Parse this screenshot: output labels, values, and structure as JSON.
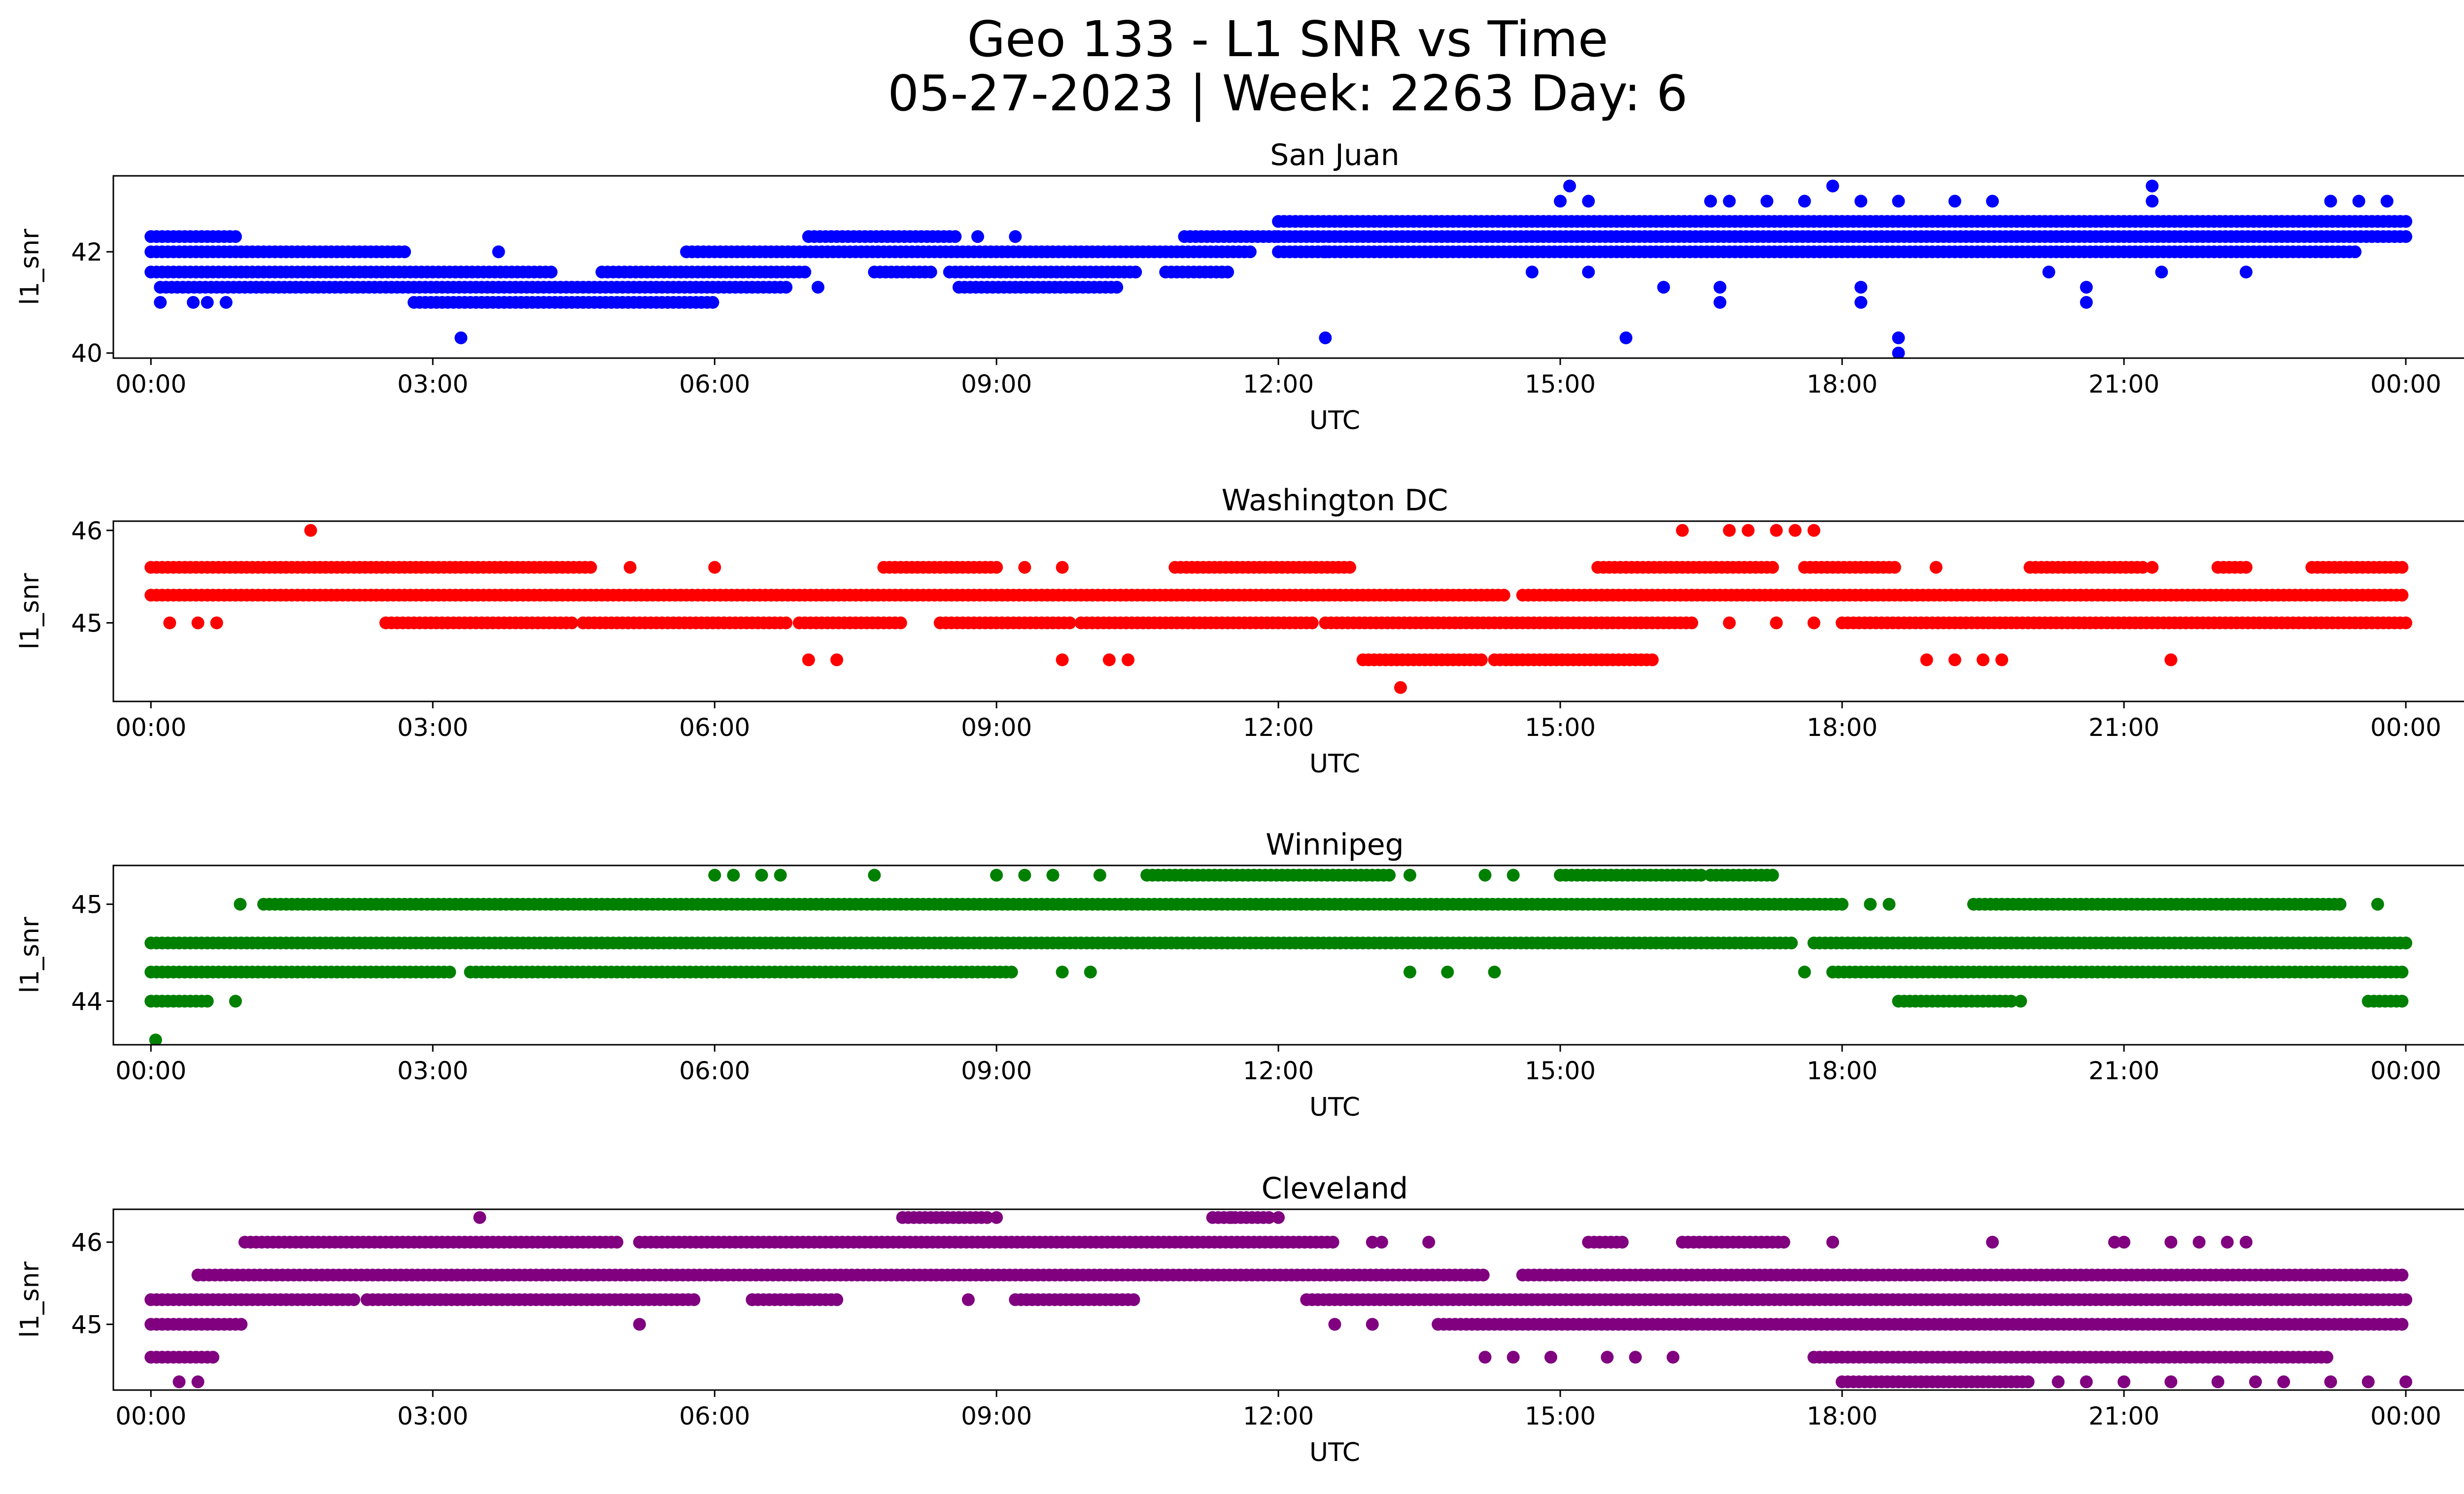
{
  "figure": {
    "title_line1": "Geo 133 - L1 SNR vs Time",
    "title_line2": "05-27-2023 | Week: 2263 Day: 6"
  },
  "chart_data": [
    {
      "type": "scatter",
      "title": "San Juan",
      "xlabel": "UTC",
      "ylabel": "l1_snr",
      "color": "#0000ff",
      "xticks": [
        "00:00",
        "03:00",
        "06:00",
        "09:00",
        "12:00",
        "15:00",
        "18:00",
        "21:00",
        "00:00"
      ],
      "xlim_hours": [
        -0.4,
        25.6
      ],
      "ylim": [
        39.9,
        43.5
      ],
      "yticks": [
        40,
        42
      ],
      "levels": [
        40.0,
        40.3,
        41.0,
        41.3,
        41.6,
        42.0,
        42.3,
        42.6,
        43.0,
        43.3
      ],
      "segments": [
        {
          "y": 42.3,
          "x": [
            [
              0.0,
              0.9
            ],
            [
              7.0,
              8.6
            ],
            [
              11.0,
              12.0
            ],
            [
              12.0,
              24.0
            ]
          ]
        },
        {
          "y": 42.0,
          "x": [
            [
              0.0,
              2.7
            ],
            [
              5.7,
              11.7
            ],
            [
              12.0,
              23.5
            ]
          ]
        },
        {
          "y": 41.6,
          "x": [
            [
              0.0,
              4.3
            ],
            [
              4.8,
              7.0
            ],
            [
              7.7,
              8.3
            ],
            [
              8.5,
              10.5
            ],
            [
              10.8,
              11.5
            ]
          ]
        },
        {
          "y": 41.3,
          "x": [
            [
              0.1,
              6.8
            ],
            [
              8.6,
              10.3
            ]
          ]
        },
        {
          "y": 41.0,
          "x": [
            [
              2.8,
              6.0
            ]
          ]
        },
        {
          "y": 42.6,
          "x": [
            [
              12.0,
              24.0
            ]
          ]
        }
      ],
      "points": [
        [
          0.1,
          41.0
        ],
        [
          0.45,
          41.0
        ],
        [
          0.8,
          41.0
        ],
        [
          0.6,
          41.0
        ],
        [
          3.3,
          40.3
        ],
        [
          3.7,
          42.0
        ],
        [
          8.8,
          42.3
        ],
        [
          9.2,
          42.3
        ],
        [
          7.1,
          41.3
        ],
        [
          11.4,
          41.6
        ],
        [
          12.5,
          40.3
        ],
        [
          15.1,
          43.3
        ],
        [
          15.0,
          43.0
        ],
        [
          15.3,
          43.0
        ],
        [
          15.7,
          40.3
        ],
        [
          16.6,
          43.0
        ],
        [
          16.8,
          43.0
        ],
        [
          17.2,
          43.0
        ],
        [
          17.6,
          43.0
        ],
        [
          17.9,
          43.3
        ],
        [
          18.2,
          43.0
        ],
        [
          18.6,
          43.0
        ],
        [
          19.2,
          43.0
        ],
        [
          19.6,
          43.0
        ],
        [
          16.7,
          41.0
        ],
        [
          16.7,
          41.3
        ],
        [
          18.2,
          41.0
        ],
        [
          18.2,
          41.3
        ],
        [
          18.6,
          40.3
        ],
        [
          18.6,
          40.0
        ],
        [
          20.6,
          41.0
        ],
        [
          20.6,
          41.3
        ],
        [
          21.3,
          43.3
        ],
        [
          21.3,
          43.0
        ],
        [
          23.2,
          43.0
        ],
        [
          23.5,
          43.0
        ],
        [
          23.8,
          43.0
        ],
        [
          14.7,
          41.6
        ],
        [
          15.3,
          41.6
        ],
        [
          16.1,
          41.3
        ],
        [
          20.2,
          41.6
        ],
        [
          21.4,
          41.6
        ],
        [
          22.3,
          41.6
        ],
        [
          12.5,
          42.0
        ]
      ]
    },
    {
      "type": "scatter",
      "title": "Washington DC",
      "xlabel": "UTC",
      "ylabel": "l1_snr",
      "color": "#ff0000",
      "xticks": [
        "00:00",
        "03:00",
        "06:00",
        "09:00",
        "12:00",
        "15:00",
        "18:00",
        "21:00",
        "00:00"
      ],
      "xlim_hours": [
        -0.4,
        25.6
      ],
      "ylim": [
        44.15,
        46.1
      ],
      "yticks": [
        45,
        46
      ],
      "levels": [
        44.3,
        44.6,
        45.0,
        45.3,
        45.6,
        46.0
      ],
      "segments": [
        {
          "y": 45.3,
          "x": [
            [
              0.0,
              14.4
            ],
            [
              14.6,
              24.0
            ]
          ]
        },
        {
          "y": 45.6,
          "x": [
            [
              0.0,
              4.7
            ],
            [
              7.8,
              9.0
            ],
            [
              10.9,
              12.8
            ],
            [
              15.4,
              17.3
            ],
            [
              17.6,
              18.6
            ],
            [
              20.0,
              21.2
            ],
            [
              22.0,
              22.3
            ],
            [
              23.0,
              24.0
            ]
          ]
        },
        {
          "y": 45.0,
          "x": [
            [
              2.5,
              4.5
            ],
            [
              4.6,
              6.8
            ],
            [
              6.9,
              8.0
            ],
            [
              8.4,
              9.8
            ],
            [
              9.9,
              12.4
            ],
            [
              12.5,
              16.4
            ],
            [
              18.0,
              24.0
            ]
          ]
        },
        {
          "y": 44.6,
          "x": [
            [
              12.9,
              14.2
            ],
            [
              14.3,
              16.0
            ]
          ]
        }
      ],
      "points": [
        [
          1.7,
          46.0
        ],
        [
          16.3,
          46.0
        ],
        [
          16.8,
          46.0
        ],
        [
          17.0,
          46.0
        ],
        [
          17.3,
          46.0
        ],
        [
          17.5,
          46.0
        ],
        [
          17.7,
          46.0
        ],
        [
          13.3,
          44.3
        ],
        [
          0.2,
          45.0
        ],
        [
          0.5,
          45.0
        ],
        [
          0.7,
          45.0
        ],
        [
          16.8,
          45.0
        ],
        [
          17.3,
          45.0
        ],
        [
          17.7,
          45.0
        ],
        [
          7.0,
          44.6
        ],
        [
          7.3,
          44.6
        ],
        [
          9.7,
          44.6
        ],
        [
          10.2,
          44.6
        ],
        [
          10.4,
          44.6
        ],
        [
          18.9,
          44.6
        ],
        [
          19.2,
          44.6
        ],
        [
          19.5,
          44.6
        ],
        [
          19.7,
          44.6
        ],
        [
          21.5,
          44.6
        ],
        [
          5.1,
          45.6
        ],
        [
          6.0,
          45.6
        ],
        [
          9.3,
          45.6
        ],
        [
          9.7,
          45.6
        ],
        [
          19.0,
          45.6
        ],
        [
          21.3,
          45.6
        ]
      ]
    },
    {
      "type": "scatter",
      "title": "Winnipeg",
      "xlabel": "UTC",
      "ylabel": "l1_snr",
      "color": "#008000",
      "xticks": [
        "00:00",
        "03:00",
        "06:00",
        "09:00",
        "12:00",
        "15:00",
        "18:00",
        "21:00",
        "00:00"
      ],
      "xlim_hours": [
        -0.4,
        25.6
      ],
      "ylim": [
        43.55,
        45.4
      ],
      "yticks": [
        44,
        45
      ],
      "levels": [
        43.6,
        44.0,
        44.3,
        44.6,
        45.0,
        45.3
      ],
      "segments": [
        {
          "y": 44.6,
          "x": [
            [
              0.0,
              17.5
            ],
            [
              17.7,
              24.0
            ]
          ]
        },
        {
          "y": 44.3,
          "x": [
            [
              0.0,
              3.2
            ],
            [
              3.4,
              9.2
            ],
            [
              17.9,
              24.0
            ]
          ]
        },
        {
          "y": 45.0,
          "x": [
            [
              1.2,
              18.0
            ],
            [
              19.4,
              23.3
            ]
          ]
        },
        {
          "y": 44.0,
          "x": [
            [
              0.0,
              0.6
            ],
            [
              18.6,
              19.8
            ],
            [
              23.6,
              24.0
            ]
          ]
        },
        {
          "y": 45.3,
          "x": [
            [
              10.6,
              13.2
            ],
            [
              15.0,
              16.5
            ],
            [
              16.6,
              17.3
            ]
          ]
        }
      ],
      "points": [
        [
          0.05,
          43.6
        ],
        [
          0.9,
          44.0
        ],
        [
          0.95,
          45.0
        ],
        [
          6.0,
          45.3
        ],
        [
          6.2,
          45.3
        ],
        [
          6.5,
          45.3
        ],
        [
          6.7,
          45.3
        ],
        [
          7.7,
          45.3
        ],
        [
          9.0,
          45.3
        ],
        [
          9.3,
          45.3
        ],
        [
          9.6,
          45.3
        ],
        [
          10.1,
          45.3
        ],
        [
          13.4,
          45.3
        ],
        [
          14.2,
          45.3
        ],
        [
          14.5,
          45.3
        ],
        [
          13.4,
          44.3
        ],
        [
          13.8,
          44.3
        ],
        [
          14.3,
          44.3
        ],
        [
          9.7,
          44.3
        ],
        [
          10.0,
          44.3
        ],
        [
          17.6,
          44.3
        ],
        [
          19.9,
          44.0
        ],
        [
          18.3,
          45.0
        ],
        [
          18.5,
          45.0
        ],
        [
          23.7,
          45.0
        ]
      ]
    },
    {
      "type": "scatter",
      "title": "Cleveland",
      "xlabel": "UTC",
      "ylabel": "l1_snr",
      "color": "#800080",
      "xticks": [
        "00:00",
        "03:00",
        "06:00",
        "09:00",
        "12:00",
        "15:00",
        "18:00",
        "21:00",
        "00:00"
      ],
      "xlim_hours": [
        -0.4,
        25.6
      ],
      "ylim": [
        44.2,
        46.4
      ],
      "yticks": [
        45,
        46
      ],
      "levels": [
        44.3,
        44.6,
        45.0,
        45.3,
        45.6,
        46.0,
        46.3
      ],
      "segments": [
        {
          "y": 45.6,
          "x": [
            [
              0.5,
              14.2
            ],
            [
              14.6,
              24.0
            ]
          ]
        },
        {
          "y": 45.3,
          "x": [
            [
              0.0,
              2.2
            ],
            [
              2.3,
              5.8
            ],
            [
              6.4,
              7.3
            ],
            [
              9.2,
              10.5
            ],
            [
              12.3,
              24.0
            ]
          ]
        },
        {
          "y": 46.0,
          "x": [
            [
              1.0,
              5.0
            ],
            [
              5.2,
              12.6
            ],
            [
              15.3,
              15.7
            ],
            [
              16.3,
              17.4
            ]
          ]
        },
        {
          "y": 45.0,
          "x": [
            [
              0.0,
              1.0
            ],
            [
              13.7,
              24.0
            ]
          ]
        },
        {
          "y": 44.6,
          "x": [
            [
              0.0,
              0.7
            ],
            [
              17.7,
              23.2
            ]
          ]
        },
        {
          "y": 44.3,
          "x": [
            [
              18.0,
              20.0
            ]
          ]
        },
        {
          "y": 46.3,
          "x": [
            [
              8.0,
              8.9
            ],
            [
              11.3,
              11.9
            ]
          ]
        }
      ],
      "points": [
        [
          0.3,
          44.3
        ],
        [
          0.5,
          44.3
        ],
        [
          3.5,
          46.3
        ],
        [
          5.2,
          45.0
        ],
        [
          8.6,
          46.3
        ],
        [
          9.0,
          46.3
        ],
        [
          8.7,
          45.3
        ],
        [
          6.4,
          45.3
        ],
        [
          6.9,
          45.3
        ],
        [
          7.3,
          45.3
        ],
        [
          12.0,
          46.3
        ],
        [
          11.5,
          46.3
        ],
        [
          13.1,
          46.0
        ],
        [
          13.0,
          46.0
        ],
        [
          13.6,
          46.0
        ],
        [
          13.0,
          45.0
        ],
        [
          12.6,
          45.0
        ],
        [
          14.2,
          44.6
        ],
        [
          14.5,
          44.6
        ],
        [
          14.9,
          44.6
        ],
        [
          15.5,
          44.6
        ],
        [
          15.8,
          44.6
        ],
        [
          16.2,
          44.6
        ],
        [
          17.9,
          46.0
        ],
        [
          19.6,
          46.0
        ],
        [
          20.9,
          46.0
        ],
        [
          21.0,
          46.0
        ],
        [
          21.5,
          46.0
        ],
        [
          21.8,
          46.0
        ],
        [
          22.1,
          46.0
        ],
        [
          22.3,
          46.0
        ],
        [
          20.3,
          44.3
        ],
        [
          20.6,
          44.3
        ],
        [
          21.0,
          44.3
        ],
        [
          21.5,
          44.3
        ],
        [
          22.0,
          44.3
        ],
        [
          22.4,
          44.3
        ],
        [
          22.7,
          44.3
        ],
        [
          23.2,
          44.3
        ],
        [
          23.6,
          44.3
        ],
        [
          24.0,
          44.3
        ]
      ]
    }
  ]
}
